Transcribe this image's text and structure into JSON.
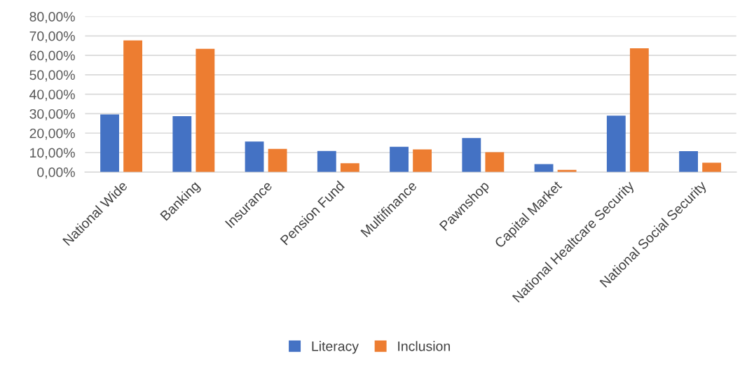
{
  "chart_data": {
    "type": "bar",
    "categories": [
      "National Wide",
      "Banking",
      "Insurance",
      "Pension Fund",
      "Multifinance",
      "Pawnshop",
      "Capital Market",
      "National Healtcare Security",
      "National Social Security"
    ],
    "series": [
      {
        "name": "Literacy",
        "color": "#4472c4",
        "values": [
          29.6,
          28.7,
          15.7,
          10.8,
          13.0,
          17.5,
          4.1,
          29.0,
          10.7
        ]
      },
      {
        "name": "Inclusion",
        "color": "#ed7d31",
        "values": [
          67.7,
          63.4,
          11.9,
          4.5,
          11.6,
          10.2,
          1.1,
          63.6,
          4.8
        ]
      }
    ],
    "ylim": [
      0,
      80
    ],
    "yticks": [
      {
        "value": 0,
        "label": "0,00%"
      },
      {
        "value": 10,
        "label": "10,00%"
      },
      {
        "value": 20,
        "label": "20,00%"
      },
      {
        "value": 30,
        "label": "30,00%"
      },
      {
        "value": 40,
        "label": "40,00%"
      },
      {
        "value": 50,
        "label": "50,00%"
      },
      {
        "value": 60,
        "label": "60,00%"
      },
      {
        "value": 70,
        "label": "70,00%"
      },
      {
        "value": 80,
        "label": "80,00%"
      }
    ],
    "grid": "y",
    "legend": "bottom"
  }
}
